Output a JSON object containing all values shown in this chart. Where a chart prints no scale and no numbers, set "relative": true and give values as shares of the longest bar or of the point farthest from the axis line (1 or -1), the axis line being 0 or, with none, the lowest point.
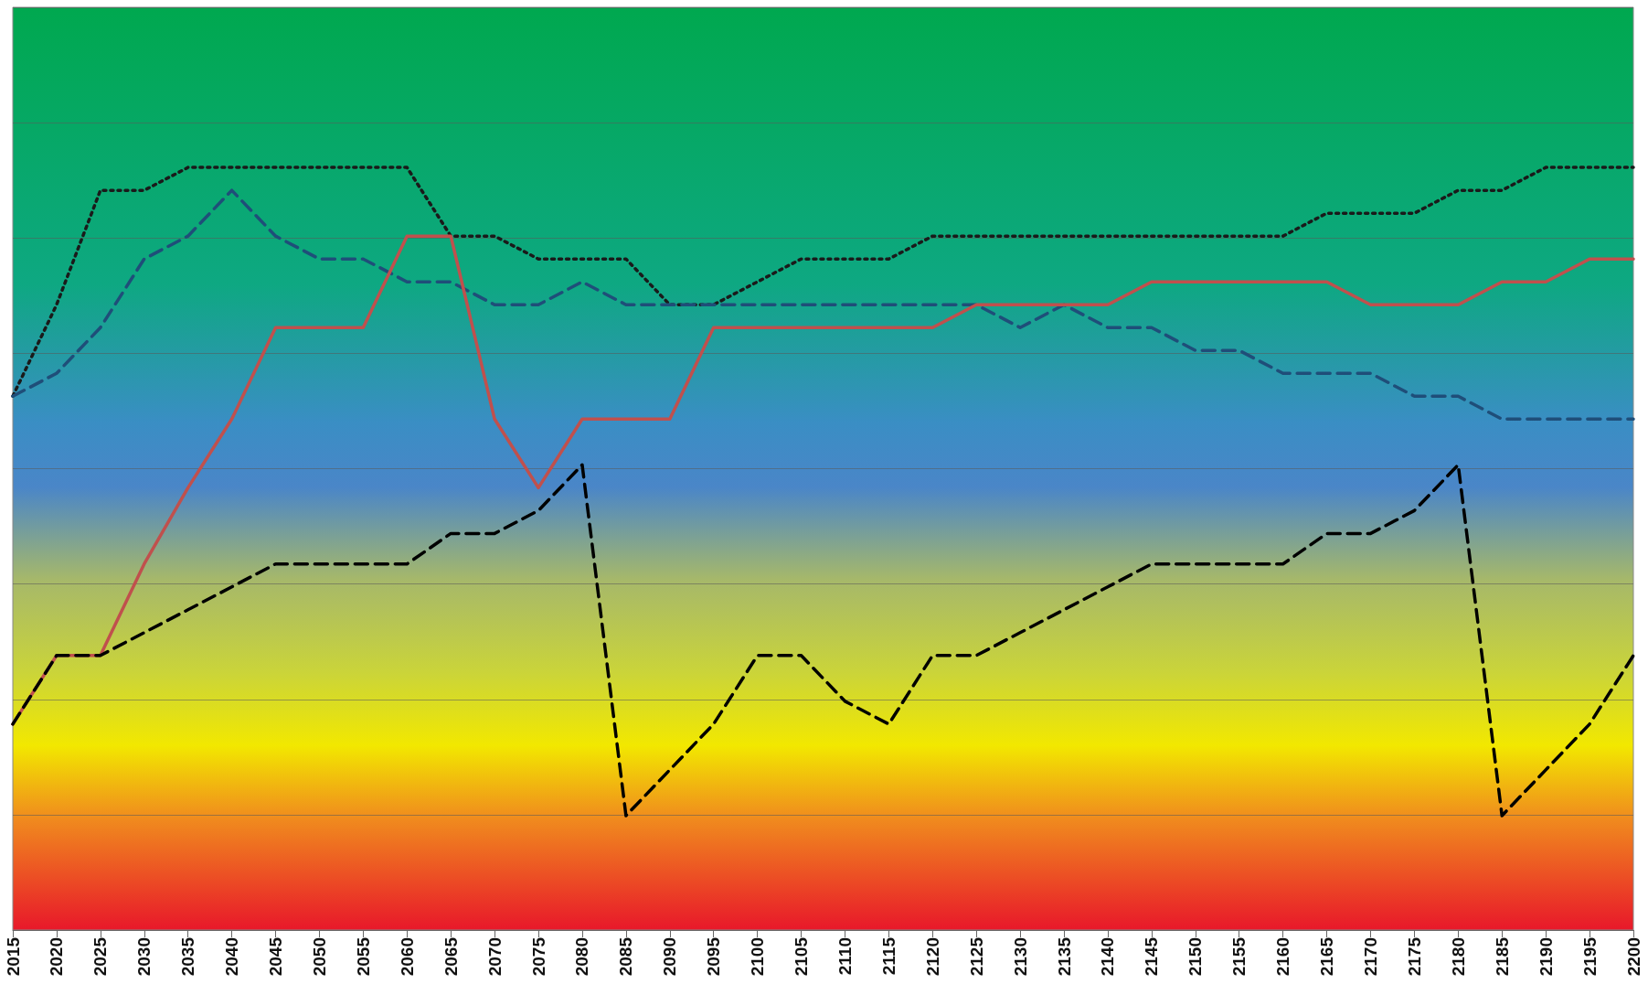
{
  "chart_data": {
    "type": "line",
    "relative": true,
    "grid": "y",
    "marker": "none",
    "categories": [
      "2015",
      "2020",
      "2025",
      "2030",
      "2035",
      "2040",
      "2045",
      "2050",
      "2055",
      "2060",
      "2065",
      "2070",
      "2075",
      "2080",
      "2085",
      "2090",
      "2095",
      "2100",
      "2105",
      "2110",
      "2115",
      "2120",
      "2125",
      "2130",
      "2135",
      "2140",
      "2145",
      "2150",
      "2155",
      "2160",
      "2165",
      "2170",
      "2175",
      "2180",
      "2185",
      "2190",
      "2195",
      "2200"
    ],
    "series": [
      {
        "color": "#1a1a1a",
        "line_style": "dotted",
        "values": [
          0.7,
          0.82,
          0.97,
          0.97,
          1,
          1,
          1,
          1,
          1,
          1,
          0.91,
          0.91,
          0.88,
          0.88,
          0.88,
          0.82,
          0.82,
          0.85,
          0.88,
          0.88,
          0.88,
          0.91,
          0.91,
          0.91,
          0.91,
          0.91,
          0.91,
          0.91,
          0.91,
          0.91,
          0.94,
          0.94,
          0.94,
          0.97,
          0.97,
          1,
          1,
          1
        ]
      },
      {
        "color": "#1f4e79",
        "line_style": "dashed",
        "values": [
          0.7,
          0.73,
          0.79,
          0.88,
          0.91,
          0.97,
          0.91,
          0.88,
          0.88,
          0.85,
          0.85,
          0.82,
          0.82,
          0.85,
          0.82,
          0.82,
          0.82,
          0.82,
          0.82,
          0.82,
          0.82,
          0.82,
          0.82,
          0.79,
          0.82,
          0.79,
          0.79,
          0.76,
          0.76,
          0.73,
          0.73,
          0.73,
          0.7,
          0.7,
          0.67,
          0.67,
          0.67,
          0.67
        ]
      },
      {
        "color": "#c0504d",
        "line_style": "solid",
        "values": [
          0.27,
          0.36,
          0.36,
          0.48,
          0.58,
          0.67,
          0.79,
          0.79,
          0.79,
          0.91,
          0.91,
          0.67,
          0.58,
          0.67,
          0.67,
          0.67,
          0.79,
          0.79,
          0.79,
          0.79,
          0.79,
          0.79,
          0.82,
          0.82,
          0.82,
          0.82,
          0.85,
          0.85,
          0.85,
          0.85,
          0.85,
          0.82,
          0.82,
          0.82,
          0.85,
          0.85,
          0.88,
          0.88
        ]
      },
      {
        "color": "#000000",
        "line_style": "dashed",
        "values": [
          0.27,
          0.36,
          0.36,
          0.39,
          0.42,
          0.45,
          0.48,
          0.48,
          0.48,
          0.48,
          0.52,
          0.52,
          0.55,
          0.61,
          0.15,
          0.21,
          0.27,
          0.36,
          0.36,
          0.3,
          0.27,
          0.36,
          0.36,
          0.39,
          0.42,
          0.45,
          0.48,
          0.48,
          0.48,
          0.48,
          0.52,
          0.52,
          0.55,
          0.61,
          0.15,
          0.21,
          0.27,
          0.36
        ]
      }
    ]
  }
}
